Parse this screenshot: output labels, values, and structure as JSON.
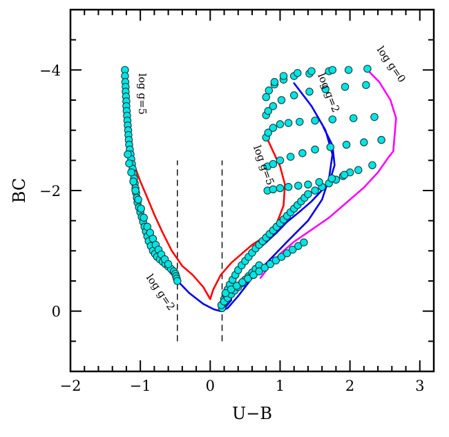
{
  "chart_data": {
    "type": "scatter",
    "xlabel": "U−B",
    "ylabel": "BC",
    "xlim": [
      -2,
      3.2
    ],
    "ylim": [
      1,
      -5
    ],
    "x_ticks": [
      -2,
      -1,
      0,
      1,
      2,
      3
    ],
    "x_tick_labels": [
      "−2",
      "−1",
      "0",
      "1",
      "2",
      "3"
    ],
    "y_ticks": [
      -4,
      -2,
      0
    ],
    "y_tick_labels": [
      "−4",
      "−2",
      "0"
    ],
    "grid": false,
    "colors": {
      "points_fill": "#00e5e5",
      "points_stroke": "#1a3a3a",
      "red": "#ff0000",
      "blue": "#0000ee",
      "magenta": "#ff00ff"
    },
    "annotations": [
      {
        "text": "log g=5",
        "x": -1.02,
        "y": -3.6,
        "rotation": 90
      },
      {
        "text": "log g=5",
        "x": 0.72,
        "y": -2.4,
        "rotation": 70
      },
      {
        "text": "log g=2",
        "x": 1.65,
        "y": -3.6,
        "rotation": 68
      },
      {
        "text": "log g=0",
        "x": 2.55,
        "y": -4.06,
        "rotation": 55
      },
      {
        "text": "log g=2",
        "x": -0.75,
        "y": -0.28,
        "rotation": 55
      }
    ],
    "dashed_lines": [
      {
        "x": -0.47,
        "y1": 0.5,
        "y2": -2.5
      },
      {
        "x": 0.17,
        "y1": 0.5,
        "y2": -2.5
      }
    ],
    "series": [
      {
        "color": "red",
        "x": [
          -1.22,
          -1.2,
          -1.18,
          -1.16,
          -1.13,
          -1.08,
          -1.0,
          -0.9,
          -0.8,
          -0.68,
          -0.55,
          -0.4,
          -0.25,
          -0.1,
          0.0
        ],
        "y": [
          -3.85,
          -3.3,
          -3.0,
          -2.8,
          -2.6,
          -2.4,
          -2.15,
          -1.88,
          -1.6,
          -1.3,
          -1.0,
          -0.75,
          -0.6,
          -0.4,
          -0.2
        ]
      },
      {
        "color": "red",
        "x": [
          0.0,
          0.04,
          0.15,
          0.3,
          0.45,
          0.6,
          0.8,
          0.95,
          1.05,
          1.07,
          1.0,
          0.9,
          0.82
        ],
        "y": [
          -0.2,
          -0.35,
          -0.6,
          -0.8,
          -0.95,
          -1.1,
          -1.25,
          -1.45,
          -1.75,
          -2.1,
          -2.4,
          -2.65,
          -2.85
        ]
      },
      {
        "color": "blue",
        "x": [
          -0.7,
          -0.6,
          -0.45,
          -0.3,
          -0.1,
          0.05,
          0.15,
          0.25,
          0.4,
          0.6,
          0.85,
          1.1,
          1.4,
          1.6,
          1.7,
          1.75,
          1.65,
          1.45,
          1.2
        ],
        "y": [
          -0.87,
          -0.68,
          -0.48,
          -0.3,
          -0.12,
          -0.03,
          0.0,
          -0.05,
          -0.25,
          -0.55,
          -0.85,
          -1.15,
          -1.5,
          -1.85,
          -2.2,
          -2.6,
          -3.0,
          -3.4,
          -3.78
        ]
      },
      {
        "color": "blue",
        "x": [
          0.17,
          0.3,
          0.3,
          0.34,
          0.45,
          0.6,
          0.78,
          0.95,
          1.1,
          1.28,
          1.45,
          1.58,
          1.7,
          1.78,
          1.75,
          1.62
        ],
        "y": [
          0.0,
          -0.18,
          -0.35,
          -0.55,
          -0.75,
          -0.95,
          -1.12,
          -1.3,
          -1.48,
          -1.65,
          -1.82,
          -1.98,
          -2.12,
          -2.42,
          -2.75,
          -3.05
        ]
      },
      {
        "color": "magenta",
        "x": [
          0.72,
          0.85,
          1.0,
          1.2,
          1.45,
          1.7,
          1.95,
          2.2,
          2.4,
          2.55,
          2.62,
          2.66,
          2.58,
          2.42,
          2.25
        ],
        "y": [
          -0.55,
          -0.75,
          -0.95,
          -1.15,
          -1.35,
          -1.55,
          -1.8,
          -2.05,
          -2.3,
          -2.55,
          -2.65,
          -3.2,
          -3.5,
          -3.8,
          -4.0
        ]
      },
      {
        "color": "cyan-points",
        "x": [
          -1.22,
          -1.22,
          -1.215,
          -1.21,
          -1.21,
          -1.205,
          -1.2,
          -1.2,
          -1.195,
          -1.19,
          -1.185,
          -1.18,
          -1.175,
          -1.17,
          -1.165,
          -1.16,
          -1.15,
          -1.14,
          -1.13,
          -1.12,
          -1.11,
          -1.1,
          -1.09,
          -1.08,
          -1.07,
          -1.06,
          -1.05,
          -1.04,
          -1.02,
          -1.0,
          -0.98,
          -0.96,
          -0.94,
          -0.92,
          -0.9,
          -0.88,
          -0.85,
          -0.82,
          -0.79,
          -0.76,
          -0.72,
          -0.68,
          -0.64,
          -0.6,
          -0.56,
          -0.52,
          -0.5,
          -0.49,
          -0.48,
          -0.47,
          -1.18,
          -1.16,
          -1.13,
          -1.1,
          -1.07,
          -1.03,
          -0.99,
          -0.95,
          -0.9,
          -0.86,
          -0.82,
          -0.78,
          -0.74,
          -0.7,
          -0.65,
          -0.6,
          0.17,
          0.18,
          0.2,
          0.22,
          0.25,
          0.28,
          0.32,
          0.36,
          0.4,
          0.45,
          0.5,
          0.55,
          0.6,
          0.65,
          0.7,
          0.75,
          0.8,
          0.85,
          0.9,
          0.95,
          1.0,
          1.05,
          1.1,
          1.15,
          1.2,
          1.25,
          1.3,
          1.35,
          1.4,
          1.5,
          1.6,
          1.7,
          1.8,
          1.9,
          2.0,
          0.16,
          0.2,
          0.25,
          0.3,
          0.35,
          0.4,
          0.45,
          0.5,
          0.55,
          0.6,
          0.65,
          0.7,
          0.22,
          0.3,
          0.38,
          0.46,
          0.54,
          0.62,
          0.7,
          0.78,
          0.86,
          0.94,
          1.02,
          1.1,
          1.18,
          1.26,
          1.34,
          0.82,
          0.9,
          1.0,
          1.12,
          1.26,
          1.4,
          1.56,
          1.74,
          1.92,
          2.12,
          2.32,
          0.82,
          0.9,
          1.0,
          1.15,
          1.32,
          1.5,
          1.72,
          1.95,
          2.2,
          2.45,
          0.8,
          0.83,
          0.9,
          1.0,
          1.12,
          1.28,
          1.5,
          1.75,
          2.05,
          2.35,
          0.8,
          0.83,
          0.9,
          1.02,
          1.2,
          1.42,
          1.65,
          1.93,
          2.23,
          0.8,
          0.84,
          0.92,
          1.05,
          1.2,
          1.42,
          1.7,
          1.98,
          2.25,
          0.92,
          1.05,
          1.25,
          1.45,
          1.75
        ],
        "y": [
          -4.0,
          -3.9,
          -3.8,
          -3.72,
          -3.64,
          -3.56,
          -3.48,
          -3.4,
          -3.32,
          -3.24,
          -3.16,
          -3.08,
          -3.0,
          -2.92,
          -2.84,
          -2.76,
          -2.68,
          -2.6,
          -2.52,
          -2.44,
          -2.36,
          -2.28,
          -2.2,
          -2.12,
          -2.04,
          -1.96,
          -1.88,
          -1.8,
          -1.72,
          -1.64,
          -1.56,
          -1.48,
          -1.4,
          -1.32,
          -1.24,
          -1.16,
          -1.08,
          -1.0,
          -0.95,
          -0.9,
          -0.86,
          -0.82,
          -0.78,
          -0.74,
          -0.7,
          -0.66,
          -0.62,
          -0.58,
          -0.54,
          -0.5,
          -2.6,
          -2.45,
          -2.3,
          -2.15,
          -2.0,
          -1.85,
          -1.7,
          -1.55,
          -1.4,
          -1.3,
          -1.2,
          -1.1,
          -1.02,
          -0.94,
          -0.86,
          -0.78,
          -0.05,
          -0.12,
          -0.2,
          -0.28,
          -0.36,
          -0.44,
          -0.52,
          -0.6,
          -0.68,
          -0.76,
          -0.83,
          -0.9,
          -0.97,
          -1.04,
          -1.1,
          -1.16,
          -1.22,
          -1.28,
          -1.34,
          -1.4,
          -1.46,
          -1.52,
          -1.58,
          -1.64,
          -1.7,
          -1.76,
          -1.82,
          -1.88,
          -1.94,
          -2.0,
          -2.06,
          -2.12,
          -2.18,
          -2.24,
          -2.3,
          -0.1,
          -0.16,
          -0.22,
          -0.28,
          -0.34,
          -0.4,
          -0.46,
          -0.52,
          -0.58,
          -0.64,
          -0.7,
          -0.76,
          -0.3,
          -0.36,
          -0.42,
          -0.48,
          -0.54,
          -0.6,
          -0.66,
          -0.72,
          -0.78,
          -0.84,
          -0.9,
          -0.96,
          -1.02,
          -1.08,
          -1.14,
          -2.0,
          -2.02,
          -2.04,
          -2.06,
          -2.08,
          -2.1,
          -2.14,
          -2.2,
          -2.26,
          -2.34,
          -2.42,
          -2.4,
          -2.44,
          -2.5,
          -2.56,
          -2.62,
          -2.68,
          -2.72,
          -2.76,
          -2.8,
          -2.84,
          -2.88,
          -2.96,
          -3.04,
          -3.1,
          -3.12,
          -3.14,
          -3.16,
          -3.18,
          -3.2,
          -3.22,
          -3.25,
          -3.32,
          -3.4,
          -3.5,
          -3.58,
          -3.64,
          -3.68,
          -3.72,
          -3.75,
          -3.55,
          -3.66,
          -3.76,
          -3.84,
          -3.9,
          -3.94,
          -3.98,
          -4.0,
          -4.02,
          -3.8,
          -3.9,
          -3.95,
          -3.98,
          -4.0
        ]
      }
    ]
  }
}
